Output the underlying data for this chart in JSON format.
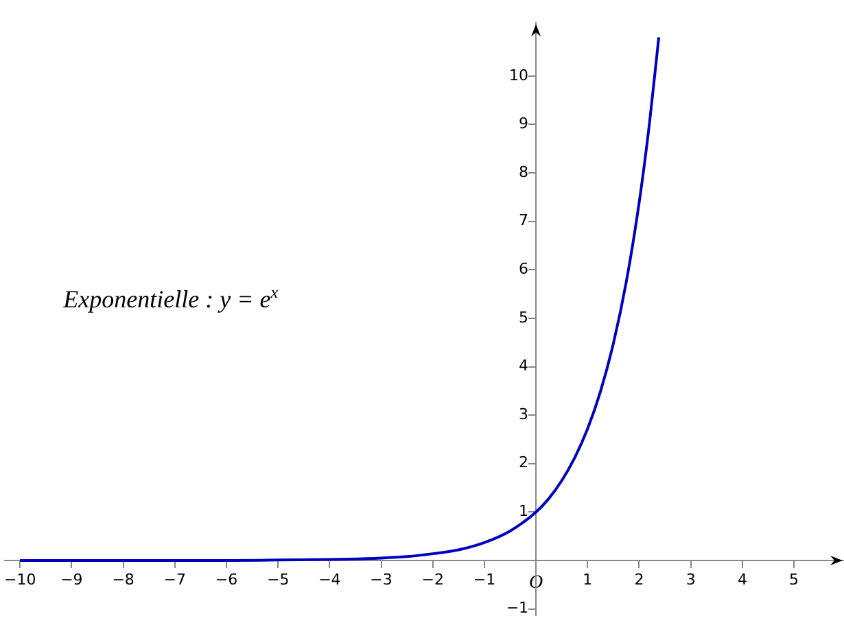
{
  "chart_data": {
    "type": "line",
    "x": [
      -10,
      -9,
      -8,
      -7,
      -6,
      -5,
      -4,
      -3,
      -2.5,
      -2,
      -1.5,
      -1,
      -0.5,
      0,
      0.25,
      0.5,
      0.75,
      1,
      1.25,
      1.5,
      1.75,
      2,
      2.2,
      2.38
    ],
    "series": [
      {
        "color": "#0000c0",
        "values": [
          0,
          0,
          0,
          0,
          0,
          0.01,
          0.02,
          0.05,
          0.08,
          0.14,
          0.22,
          0.37,
          0.61,
          1,
          1.28,
          1.65,
          2.12,
          2.72,
          3.49,
          4.48,
          5.75,
          7.39,
          9.03,
          10.8
        ]
      }
    ],
    "xlim": [
      -10.3,
      5.97
    ],
    "xticks": [
      -10,
      -9,
      -8,
      -7,
      -6,
      -5,
      -4,
      -3,
      -2,
      -1,
      {
        "value": 0,
        "label": "O"
      },
      1,
      2,
      3,
      4,
      5
    ],
    "ylim": [
      -1.13,
      11.1
    ],
    "yticks": [
      -1,
      {
        "value": 0,
        "label": null
      },
      1,
      2,
      3,
      4,
      5,
      6,
      7,
      8,
      9,
      10
    ],
    "annotations": [
      "Exponentielle : y = e$^{x}$"
    ],
    "grid": false,
    "legend": false,
    "marker": "none",
    "line_style": "solid"
  }
}
